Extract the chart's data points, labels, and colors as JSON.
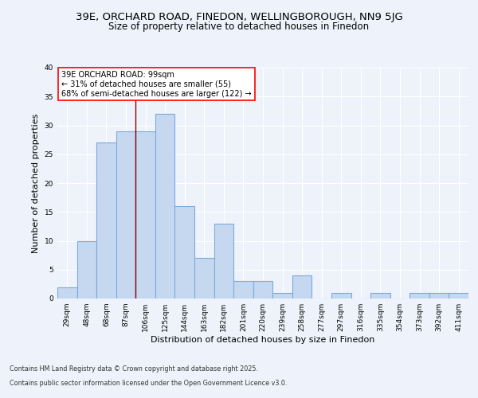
{
  "title1": "39E, ORCHARD ROAD, FINEDON, WELLINGBOROUGH, NN9 5JG",
  "title2": "Size of property relative to detached houses in Finedon",
  "xlabel": "Distribution of detached houses by size in Finedon",
  "ylabel": "Number of detached properties",
  "categories": [
    "29sqm",
    "48sqm",
    "68sqm",
    "87sqm",
    "106sqm",
    "125sqm",
    "144sqm",
    "163sqm",
    "182sqm",
    "201sqm",
    "220sqm",
    "239sqm",
    "258sqm",
    "277sqm",
    "297sqm",
    "316sqm",
    "335sqm",
    "354sqm",
    "373sqm",
    "392sqm",
    "411sqm"
  ],
  "values": [
    2,
    10,
    27,
    29,
    29,
    32,
    16,
    7,
    13,
    3,
    3,
    1,
    4,
    0,
    1,
    0,
    1,
    0,
    1,
    1,
    1
  ],
  "bar_color": "#c5d8f0",
  "bar_edge_color": "#7aaadd",
  "red_line_index": 4,
  "annotation_line1": "39E ORCHARD ROAD: 99sqm",
  "annotation_line2": "← 31% of detached houses are smaller (55)",
  "annotation_line3": "68% of semi-detached houses are larger (122) →",
  "annotation_box_color": "white",
  "annotation_box_edge": "red",
  "ylim": [
    0,
    40
  ],
  "yticks": [
    0,
    5,
    10,
    15,
    20,
    25,
    30,
    35,
    40
  ],
  "footer1": "Contains HM Land Registry data © Crown copyright and database right 2025.",
  "footer2": "Contains public sector information licensed under the Open Government Licence v3.0.",
  "bg_color": "#eef3fb",
  "plot_bg_color": "#eef3fb",
  "grid_color": "white",
  "title_fontsize": 9.5,
  "subtitle_fontsize": 8.5,
  "tick_fontsize": 6.5,
  "label_fontsize": 8,
  "annotation_fontsize": 7,
  "footer_fontsize": 5.8
}
